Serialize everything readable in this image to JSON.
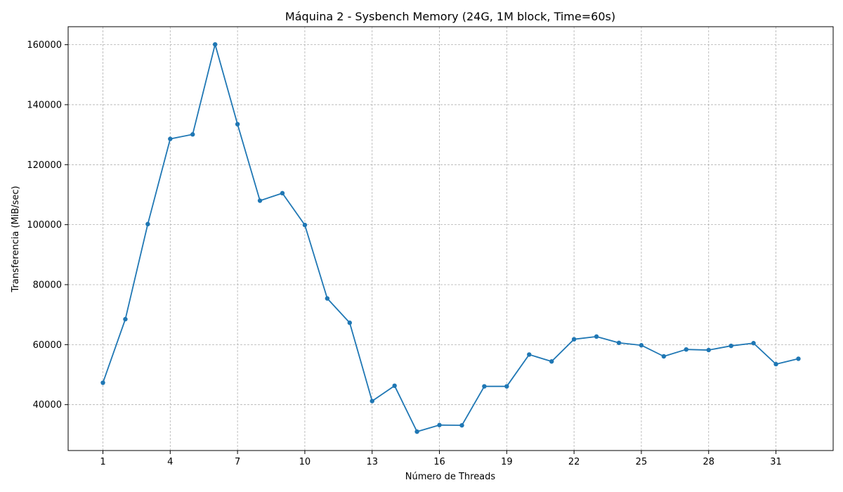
{
  "chart_data": {
    "type": "line",
    "title": "Máquina 2 - Sysbench Memory (24G, 1M block, Time=60s)",
    "xlabel": "Número de Threads",
    "ylabel": "Transferencia (MiB/sec)",
    "xlim": [
      -0.55,
      33.55
    ],
    "ylim": [
      24700,
      166000
    ],
    "x_ticks": [
      1,
      4,
      7,
      10,
      13,
      16,
      19,
      22,
      25,
      28,
      31
    ],
    "y_ticks": [
      40000,
      60000,
      80000,
      100000,
      120000,
      140000,
      160000
    ],
    "grid": true,
    "series": [
      {
        "color": "#1f77b4",
        "marker": "circle",
        "x": [
          1,
          2,
          3,
          4,
          5,
          6,
          7,
          8,
          9,
          10,
          11,
          12,
          13,
          14,
          15,
          16,
          17,
          18,
          19,
          20,
          21,
          22,
          23,
          24,
          25,
          26,
          27,
          28,
          29,
          30,
          31,
          32
        ],
        "y": [
          47300,
          68500,
          100200,
          128600,
          130100,
          160100,
          133500,
          108000,
          110500,
          99900,
          75400,
          67300,
          41200,
          46300,
          31000,
          33200,
          33100,
          46100,
          46100,
          56700,
          54400,
          61800,
          62700,
          60600,
          59800,
          56100,
          58400,
          58200,
          59600,
          60500,
          53500,
          55300
        ]
      }
    ]
  }
}
